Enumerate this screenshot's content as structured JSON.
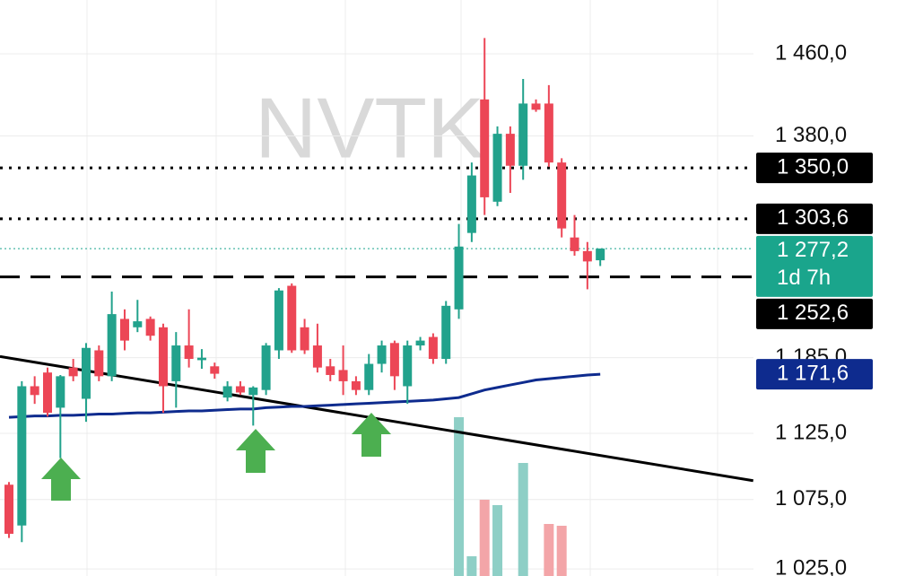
{
  "chart_data": {
    "type": "candlestick",
    "watermark": "NVTK",
    "log": true,
    "ylim": [
      1515,
      1020
    ],
    "yticks": [
      {
        "value": 1460,
        "label": "1 460,0"
      },
      {
        "value": 1380,
        "label": "1 380,0"
      },
      {
        "value": 1185,
        "label": "1 185,0"
      },
      {
        "value": 1125,
        "label": "1 125,0"
      },
      {
        "value": 1075,
        "label": "1 075,0"
      },
      {
        "value": 1025,
        "label": "1 025,0"
      }
    ],
    "up_color": "#22a28c",
    "down_color": "#ec4656",
    "open": [
      1086,
      1056,
      1162,
      1173,
      1145,
      1177,
      1152,
      1191,
      1170,
      1217,
      1210,
      1217,
      1210,
      1166,
      1195,
      1183,
      1178,
      1153,
      1162,
      1155,
      1159,
      1191,
      1245,
      1210,
      1195,
      1178,
      1175,
      1166,
      1159,
      1180,
      1197,
      1162,
      1195,
      1202,
      1184,
      1225,
      1291,
      1415,
      1319,
      1382,
      1352,
      1411,
      1411,
      1355,
      1287,
      1275,
      1267
    ],
    "high": [
      1088,
      1166,
      1170,
      1177,
      1171,
      1184,
      1197,
      1195,
      1240,
      1225,
      1233,
      1219,
      1213,
      1206,
      1225,
      1192,
      1181,
      1166,
      1166,
      1162,
      1197,
      1243,
      1247,
      1217,
      1213,
      1184,
      1195,
      1170,
      1188,
      1199,
      1199,
      1199,
      1202,
      1205,
      1232,
      1299,
      1355,
      1476,
      1389,
      1389,
      1435,
      1415,
      1429,
      1359,
      1307,
      1283,
      1277.2
    ],
    "low": [
      1047,
      1044,
      1148,
      1138,
      1106,
      1166,
      1134,
      1166,
      1166,
      1191,
      1206,
      1199,
      1141,
      1145,
      1177,
      1176,
      1168,
      1150,
      1155,
      1131,
      1155,
      1184,
      1189,
      1188,
      1173,
      1166,
      1155,
      1155,
      1155,
      1173,
      1159,
      1148,
      1191,
      1180,
      1180,
      1217,
      1283,
      1307,
      1315,
      1327,
      1339,
      1403,
      1351,
      1287,
      1271,
      1242,
      1262
    ],
    "close": [
      1050,
      1162,
      1155,
      1141,
      1170,
      1170,
      1193,
      1170,
      1221,
      1199,
      1215,
      1203,
      1162,
      1195,
      1184,
      1185,
      1172,
      1162,
      1157,
      1161,
      1195,
      1241,
      1191,
      1191,
      1177,
      1171,
      1166,
      1159,
      1180,
      1195,
      1170,
      1195,
      1199,
      1184,
      1228,
      1279,
      1343,
      1323,
      1382,
      1352,
      1411,
      1405,
      1355,
      1295,
      1275,
      1266,
      1277.2
    ],
    "volume": [
      null,
      null,
      null,
      null,
      null,
      null,
      null,
      null,
      null,
      null,
      null,
      null,
      null,
      null,
      null,
      null,
      null,
      null,
      null,
      null,
      null,
      null,
      null,
      null,
      null,
      null,
      null,
      null,
      null,
      null,
      null,
      null,
      null,
      null,
      null,
      177,
      22,
      85,
      79,
      null,
      126,
      null,
      58,
      56,
      null,
      null,
      null
    ],
    "volume_ylim": [
      0,
      642
    ],
    "volume_up_color": "#8ecfc6",
    "volume_down_color": "#f3a5a8",
    "ma": {
      "color": "#0e2b8e",
      "label": "1 171,6",
      "label_value": 1171.6,
      "values": [
        1137.5,
        1138,
        1138.5,
        1138.5,
        1139,
        1139,
        1139.5,
        1140,
        1140,
        1140.5,
        1141,
        1141,
        1141.5,
        1142,
        1142.5,
        1142.5,
        1143,
        1143.5,
        1144,
        1144,
        1145,
        1145.5,
        1146,
        1146,
        1146.5,
        1147,
        1147.5,
        1148,
        1148.5,
        1149,
        1149.5,
        1150,
        1150.5,
        1151,
        1152,
        1153,
        1156,
        1159,
        1161,
        1163,
        1165,
        1167,
        1168,
        1169,
        1170,
        1171,
        1171.6
      ]
    },
    "trendline": {
      "x": [
        -0.7,
        57.9
      ],
      "y": [
        1186,
        1089
      ],
      "color": "#000000"
    },
    "levels": [
      {
        "value": 1350,
        "label": "1 350,0",
        "style": "dotted",
        "color": "#000000"
      },
      {
        "value": 1303.6,
        "label": "1 303,6",
        "style": "dotted",
        "color": "#000000"
      },
      {
        "value": 1252.6,
        "label": "1 252,6",
        "style": "dashed",
        "color": "#000000"
      }
    ],
    "current": {
      "value": 1277.2,
      "label": "1 277,2",
      "countdown": "1d 7h",
      "color": "#1aa58c"
    }
  }
}
